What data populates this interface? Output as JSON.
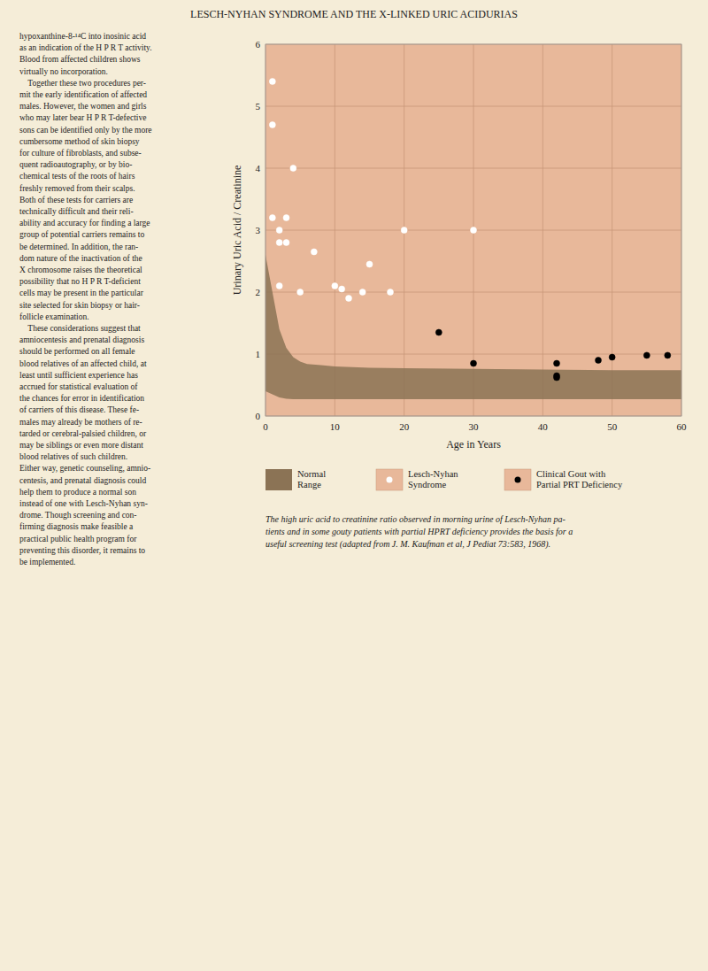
{
  "chart_data": {
    "type": "scatter",
    "title": "LESCH-NYHAN SYNDROME AND THE X-LINKED URIC ACIDURIAS",
    "x_label": "Age in Years",
    "y_label": "Urinary Uric Acid / Creatinine",
    "xlim": [
      0,
      60
    ],
    "ylim": [
      0,
      6.0
    ],
    "xticks": [
      0,
      10,
      20,
      30,
      40,
      50,
      60
    ],
    "yticks": [
      0,
      1,
      2,
      3,
      4,
      5,
      6
    ],
    "grid": true,
    "series": [
      {
        "name": "Normal\nRange",
        "type": "area",
        "color": "#8B7355",
        "x": [
          0,
          1,
          2,
          3,
          4,
          5,
          6,
          8,
          10,
          15,
          20,
          30,
          40,
          50,
          60
        ],
        "values": [
          2.6,
          2.0,
          1.4,
          1.1,
          0.95,
          0.88,
          0.84,
          0.82,
          0.8,
          0.78,
          0.77,
          0.76,
          0.75,
          0.74,
          0.74
        ],
        "lower": [
          0.4,
          0.35,
          0.3,
          0.28,
          0.27,
          0.27,
          0.27,
          0.27,
          0.27,
          0.27,
          0.27,
          0.27,
          0.27,
          0.27,
          0.27
        ]
      },
      {
        "name": "Lesch-Nyhan\nSyndrome",
        "type": "scatter",
        "color": "white",
        "marker": "circle",
        "x": [
          1,
          1,
          1,
          2,
          2,
          2,
          3,
          3,
          4,
          5,
          7,
          10,
          11,
          12,
          14,
          15,
          18,
          20,
          30
        ],
        "values": [
          5.4,
          4.7,
          3.2,
          3.0,
          2.8,
          2.1,
          3.2,
          2.8,
          4.0,
          2.0,
          2.65,
          2.1,
          2.05,
          1.9,
          2.0,
          2.45,
          2.0,
          3.0,
          3.0
        ]
      },
      {
        "name": "Clinical Gout with\nPartial PRT Deficiency",
        "type": "scatter",
        "color": "black",
        "marker": "circle",
        "x": [
          25,
          30,
          42,
          42,
          42,
          48,
          50,
          55,
          58
        ],
        "values": [
          1.35,
          0.85,
          0.85,
          0.65,
          0.62,
          0.9,
          0.95,
          0.98,
          0.98
        ]
      }
    ],
    "annotations": [
      "The high uric acid to creatinine ratio observed in morning urine of Lesch-Nyhan pa-\ntients and in some gouty patients with partial HPRT deficiency provides the basis for a\nuseful screening test (adapted from J. M. Kaufman et al, J Pediat 73:583, 1968).",
      "hypoxanthine-8-¹⁴C into inosinic acid\nas an indication of the H P R T activity.\nBlood from affected children shows\nvirtually no incorporation.\n    Together these two procedures per-\nmit the early identification of affected\nmales. However, the women and girls\nwho may later bear H P R T-defective\nsons can be identified only by the more\ncumbersome method of skin biopsy\nfor culture of fibroblasts, and subse-\nquent radioautography, or by bio-\nchemical tests of the roots of hairs\nfreshly removed from their scalps.\nBoth of these tests for carriers are\ntechnically difficult and their reli-\nability and accuracy for finding a large\ngroup of potential carriers remains to\nbe determined. In addition, the ran-\ndom nature of the inactivation of the\nX chromosome raises the theoretical\npossibility that no H P R T-deficient\ncells may be present in the particular\nsite selected for skin biopsy or hair-\nfollicle examination.\n    These considerations suggest that\namniocentesis and prenatal diagnosis\nshould be performed on all female\nblood relatives of an affected child, at\nleast until sufficient experience has\naccrued for statistical evaluation of\nthe chances for error in identification\nof carriers of this disease. These fe-\nmales may already be mothers of re-\ntarded or cerebral-palsied children, or\nmay be siblings or even more distant\nblood relatives of such children.\nEither way, genetic counseling, amnio-\ncentesis, and prenatal diagnosis could\nhelp them to produce a normal son\ninstead of one with Lesch-Nyhan syn-\ndrome. Though screening and con-\nfirming diagnosis make feasible a\npractical public health program for\npreventing this disorder, it remains to\nbe implemented."
    ]
  }
}
